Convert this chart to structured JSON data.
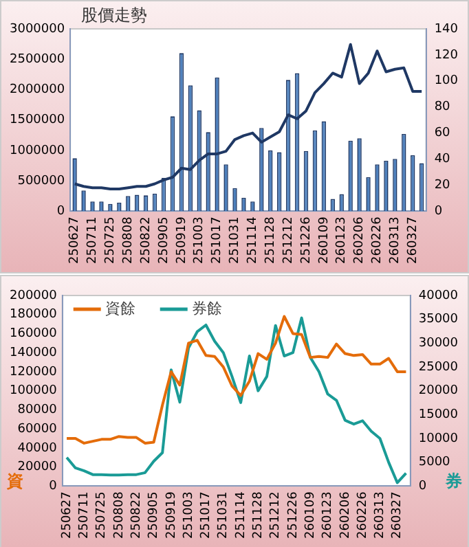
{
  "chart_data": [
    {
      "type": "bar",
      "title": "股價走勢",
      "categories": [
        "250627",
        null,
        "250711",
        null,
        "250725",
        null,
        "250808",
        null,
        "250822",
        null,
        "250905",
        null,
        "250919",
        null,
        "251003",
        null,
        "251017",
        null,
        "251031",
        null,
        "251114",
        null,
        "251128",
        null,
        "251212",
        null,
        "251226",
        null,
        "260109",
        null,
        "260123",
        null,
        "260206",
        null,
        "260226",
        null,
        "260313",
        null,
        "260327",
        null
      ],
      "series": [
        {
          "color": "#4f81bd",
          "values": [
            870000,
            340000,
            160000,
            160000,
            120000,
            140000,
            250000,
            270000,
            260000,
            290000,
            550000,
            1560000,
            2600000,
            2070000,
            1660000,
            1300000,
            2200000,
            770000,
            380000,
            220000,
            160000,
            1370000,
            1000000,
            970000,
            2160000,
            2270000,
            990000,
            1330000,
            1480000,
            200000,
            280000,
            1160000,
            1200000,
            560000,
            770000,
            830000,
            860000,
            1270000,
            920000,
            790000
          ]
        },
        {
          "type": "line",
          "axis": "y2",
          "color": "#1f3864",
          "values": [
            21,
            19,
            18,
            18,
            17,
            17,
            18,
            19,
            19,
            21,
            24,
            26,
            33,
            32,
            39,
            44,
            44,
            46,
            55,
            58,
            60,
            53,
            57,
            61,
            74,
            71,
            77,
            91,
            98,
            106,
            103,
            128,
            98,
            106,
            123,
            107,
            109,
            110,
            92,
            92
          ]
        }
      ],
      "ylim": [
        0,
        3000000
      ],
      "yticks": [
        0,
        500000,
        1000000,
        1500000,
        2000000,
        2500000,
        3000000
      ],
      "y2lim": [
        0,
        140
      ],
      "y2ticks": [
        0,
        20,
        40,
        60,
        80,
        100,
        120,
        140
      ],
      "grid": false,
      "legend": false
    },
    {
      "type": "line",
      "ylabel": "資",
      "y2label": "券",
      "categories": [
        "250627",
        null,
        "250711",
        null,
        "250725",
        null,
        "250808",
        null,
        "250822",
        null,
        "250905",
        null,
        "250919",
        null,
        "251003",
        null,
        "251017",
        null,
        "251031",
        null,
        "251114",
        null,
        "251128",
        null,
        "251212",
        null,
        "251226",
        null,
        "260109",
        null,
        "260123",
        null,
        "260206",
        null,
        "260226",
        null,
        "260313",
        null,
        "260327",
        null
      ],
      "series": [
        {
          "name": "資餘",
          "color": "#e46c0a",
          "values": [
            50000,
            50000,
            45000,
            47000,
            49000,
            49000,
            52000,
            51000,
            51000,
            45000,
            46000,
            85000,
            120000,
            106000,
            150000,
            153000,
            137000,
            136000,
            125000,
            105000,
            95000,
            110000,
            139000,
            133000,
            150000,
            178000,
            160000,
            159000,
            135000,
            136000,
            135000,
            149000,
            139000,
            137000,
            138000,
            128000,
            128000,
            134000,
            120000,
            120000
          ]
        },
        {
          "name": "券餘",
          "color": "#1a9b96",
          "axis": "y2",
          "values": [
            6000,
            3800,
            3200,
            2400,
            2400,
            2300,
            2300,
            2400,
            2400,
            2800,
            5200,
            7000,
            24400,
            17600,
            29000,
            32400,
            33800,
            30400,
            28000,
            23000,
            17500,
            27300,
            20000,
            23000,
            33700,
            27300,
            28000,
            35300,
            27000,
            24000,
            19300,
            18000,
            13800,
            13000,
            13700,
            11500,
            10000,
            5000,
            700,
            2700
          ]
        }
      ],
      "ylim": [
        0,
        200000
      ],
      "yticks": [
        0,
        20000,
        40000,
        60000,
        80000,
        100000,
        120000,
        140000,
        160000,
        180000,
        200000
      ],
      "y2lim": [
        0,
        40000
      ],
      "y2ticks": [
        0,
        5000,
        10000,
        15000,
        20000,
        25000,
        30000,
        35000,
        40000
      ],
      "grid": false,
      "legend": "top left"
    }
  ]
}
